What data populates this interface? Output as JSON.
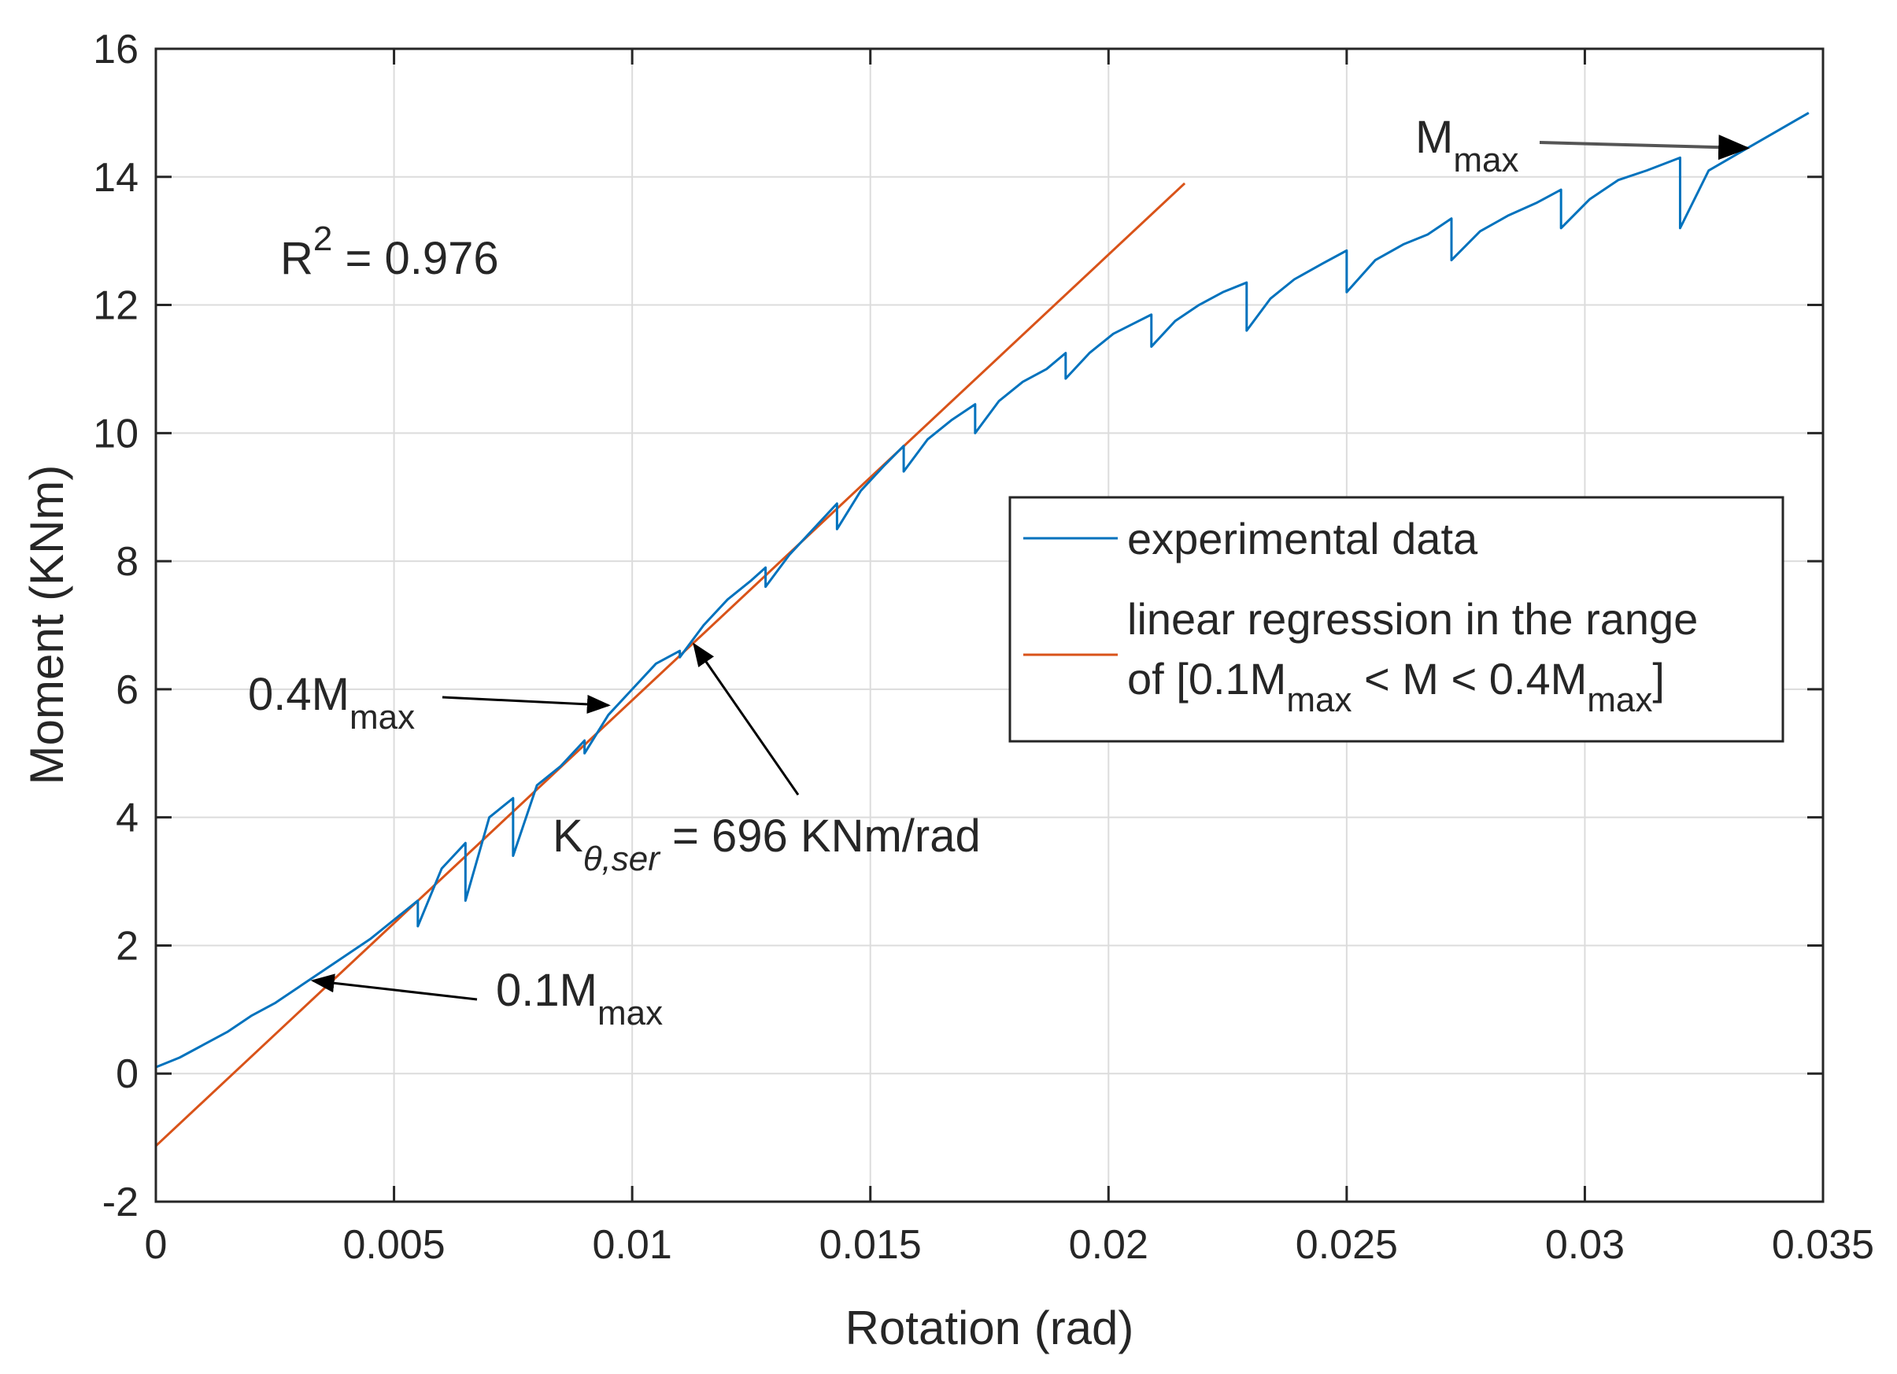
{
  "chart_data": {
    "type": "line",
    "xlabel": "Rotation (rad)",
    "ylabel": "Moment (KNm)",
    "xlim": [
      0,
      0.035
    ],
    "ylim": [
      -2,
      16
    ],
    "grid": true,
    "xticks": [
      0,
      0.005,
      0.01,
      0.015,
      0.02,
      0.025,
      0.03,
      0.035
    ],
    "xtick_labels": [
      "0",
      "0.005",
      "0.01",
      "0.015",
      "0.02",
      "0.025",
      "0.03",
      "0.035"
    ],
    "yticks": [
      -2,
      0,
      2,
      4,
      6,
      8,
      10,
      12,
      14,
      16
    ],
    "ytick_labels": [
      "-2",
      "0",
      "2",
      "4",
      "6",
      "8",
      "10",
      "12",
      "14",
      "16"
    ],
    "series": [
      {
        "name": "experimental data",
        "color": "#0072BD",
        "x": [
          0,
          0.0005,
          0.001,
          0.0015,
          0.002,
          0.0025,
          0.003,
          0.0035,
          0.004,
          0.0045,
          0.005,
          0.0055,
          0.0055,
          0.006,
          0.0065,
          0.0065,
          0.007,
          0.0075,
          0.0075,
          0.008,
          0.0085,
          0.009,
          0.009,
          0.0095,
          0.01,
          0.0105,
          0.011,
          0.011,
          0.0115,
          0.012,
          0.0125,
          0.0128,
          0.0128,
          0.0133,
          0.0138,
          0.0143,
          0.0143,
          0.0148,
          0.0153,
          0.0157,
          0.0157,
          0.0162,
          0.0167,
          0.0172,
          0.0172,
          0.0177,
          0.0182,
          0.0187,
          0.0191,
          0.0191,
          0.0196,
          0.0201,
          0.0205,
          0.0209,
          0.0209,
          0.0214,
          0.0219,
          0.0224,
          0.0229,
          0.0229,
          0.0234,
          0.0239,
          0.0245,
          0.025,
          0.025,
          0.0256,
          0.0262,
          0.0267,
          0.0272,
          0.0272,
          0.0278,
          0.0284,
          0.029,
          0.0295,
          0.0295,
          0.0301,
          0.0307,
          0.0313,
          0.032,
          0.032,
          0.0326,
          0.0333,
          0.034,
          0.0347
        ],
        "y": [
          0.1,
          0.25,
          0.45,
          0.65,
          0.9,
          1.1,
          1.35,
          1.6,
          1.85,
          2.1,
          2.4,
          2.7,
          2.3,
          3.2,
          3.6,
          2.7,
          4.0,
          4.3,
          3.4,
          4.5,
          4.8,
          5.2,
          5.0,
          5.6,
          6.0,
          6.4,
          6.6,
          6.5,
          7.0,
          7.4,
          7.7,
          7.9,
          7.6,
          8.1,
          8.5,
          8.9,
          8.5,
          9.1,
          9.5,
          9.8,
          9.4,
          9.9,
          10.2,
          10.45,
          10.0,
          10.5,
          10.8,
          11.0,
          11.25,
          10.85,
          11.25,
          11.55,
          11.7,
          11.85,
          11.35,
          11.75,
          12.0,
          12.2,
          12.35,
          11.6,
          12.1,
          12.4,
          12.65,
          12.85,
          12.2,
          12.7,
          12.95,
          13.1,
          13.35,
          12.7,
          13.15,
          13.4,
          13.6,
          13.8,
          13.2,
          13.65,
          13.95,
          14.1,
          14.3,
          13.2,
          14.1,
          14.4,
          14.7,
          15.0
        ]
      },
      {
        "name": "linear regression in the range of [0.1M_max < M < 0.4M_max]",
        "color": "#D95319",
        "x": [
          0,
          0.0216
        ],
        "y": [
          -1.13,
          13.9
        ]
      }
    ],
    "legend": {
      "location": "right",
      "entries": [
        "experimental data",
        "linear regression in the range",
        "of [0.1M",
        "max",
        " < M < 0.4M",
        "max",
        "]"
      ]
    },
    "annotations": {
      "r2": {
        "label": "R",
        "sup": "2",
        "rest": " = 0.976"
      },
      "m_max": {
        "label": "M",
        "sub": "max",
        "x": 0.0334,
        "y": 14.45
      },
      "m04": {
        "label": "0.4M",
        "sub": "max",
        "x": 0.0095,
        "y": 5.75
      },
      "m01": {
        "label": "0.1M",
        "sub": "max",
        "x": 0.0033,
        "y": 1.45
      },
      "stiffness": {
        "label": "K",
        "sub": "θ,ser",
        "rest": " = 696 KNm/rad",
        "x": 0.0113,
        "y": 6.7
      }
    }
  }
}
